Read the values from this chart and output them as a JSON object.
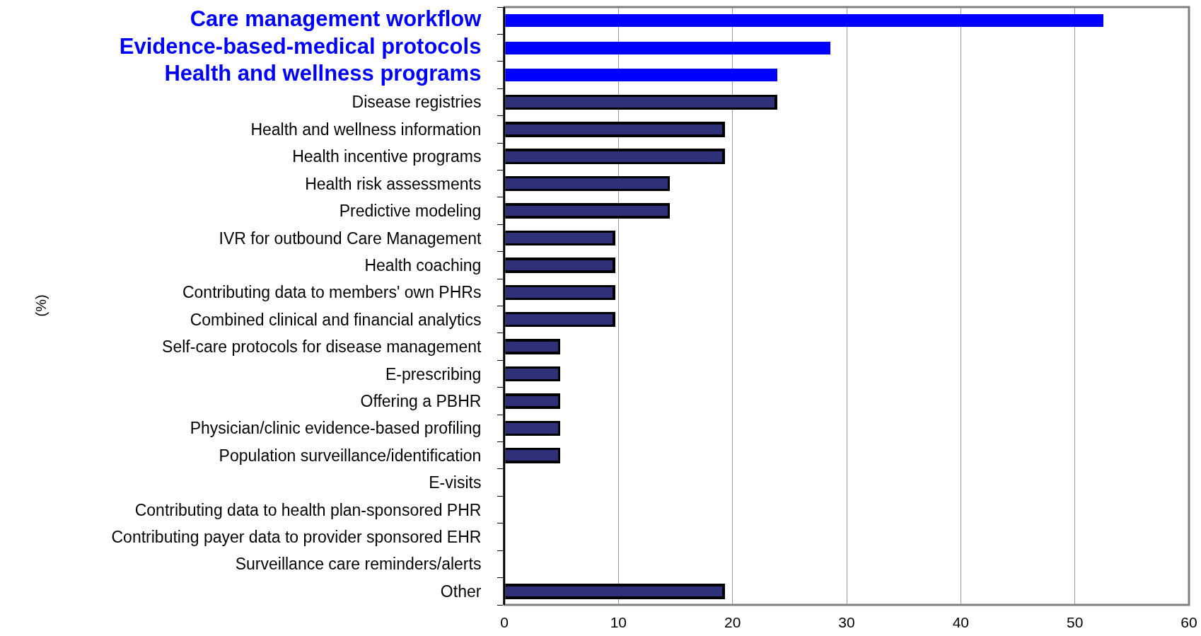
{
  "chart_data": {
    "type": "bar",
    "orientation": "horizontal",
    "stacked": true,
    "annotations": [
      "(%)"
    ],
    "categories": [
      "Care management workflow",
      "Evidence-based-medical protocols",
      "Health and wellness programs",
      "Disease registries",
      "Health and wellness information",
      "Health incentive programs",
      "Health risk assessments",
      "Predictive modeling",
      "IVR for outbound Care Management",
      "Health coaching",
      "Contributing data to members' own PHRs",
      "Combined clinical and financial analytics",
      "Self-care protocols for disease management",
      "E-prescribing",
      "Offering a PBHR",
      "Physician/clinic evidence-based profiling",
      "Population surveillance/identification",
      "E-visits",
      "Contributing data to health plan-sponsored PHR",
      "Contributing payer data to provider sponsored EHR",
      "Surveillance care reminders/alerts",
      "Other"
    ],
    "series": [
      {
        "color": "#0000ff",
        "values": [
          52.5,
          28.6,
          23.9,
          null,
          null,
          null,
          null,
          null,
          null,
          null,
          null,
          null,
          null,
          null,
          null,
          null,
          null,
          null,
          null,
          null,
          null,
          null
        ]
      },
      {
        "color": "#2e3079",
        "values": [
          null,
          null,
          null,
          23.8,
          19.2,
          19.2,
          14.4,
          14.4,
          9.6,
          9.6,
          9.6,
          9.6,
          4.8,
          4.8,
          4.8,
          4.8,
          4.8,
          0,
          0,
          0,
          0,
          19.2
        ]
      }
    ],
    "xlim": [
      0,
      60
    ],
    "xticks": [
      0,
      10,
      20,
      30,
      40,
      50,
      60
    ],
    "grid": "x"
  }
}
